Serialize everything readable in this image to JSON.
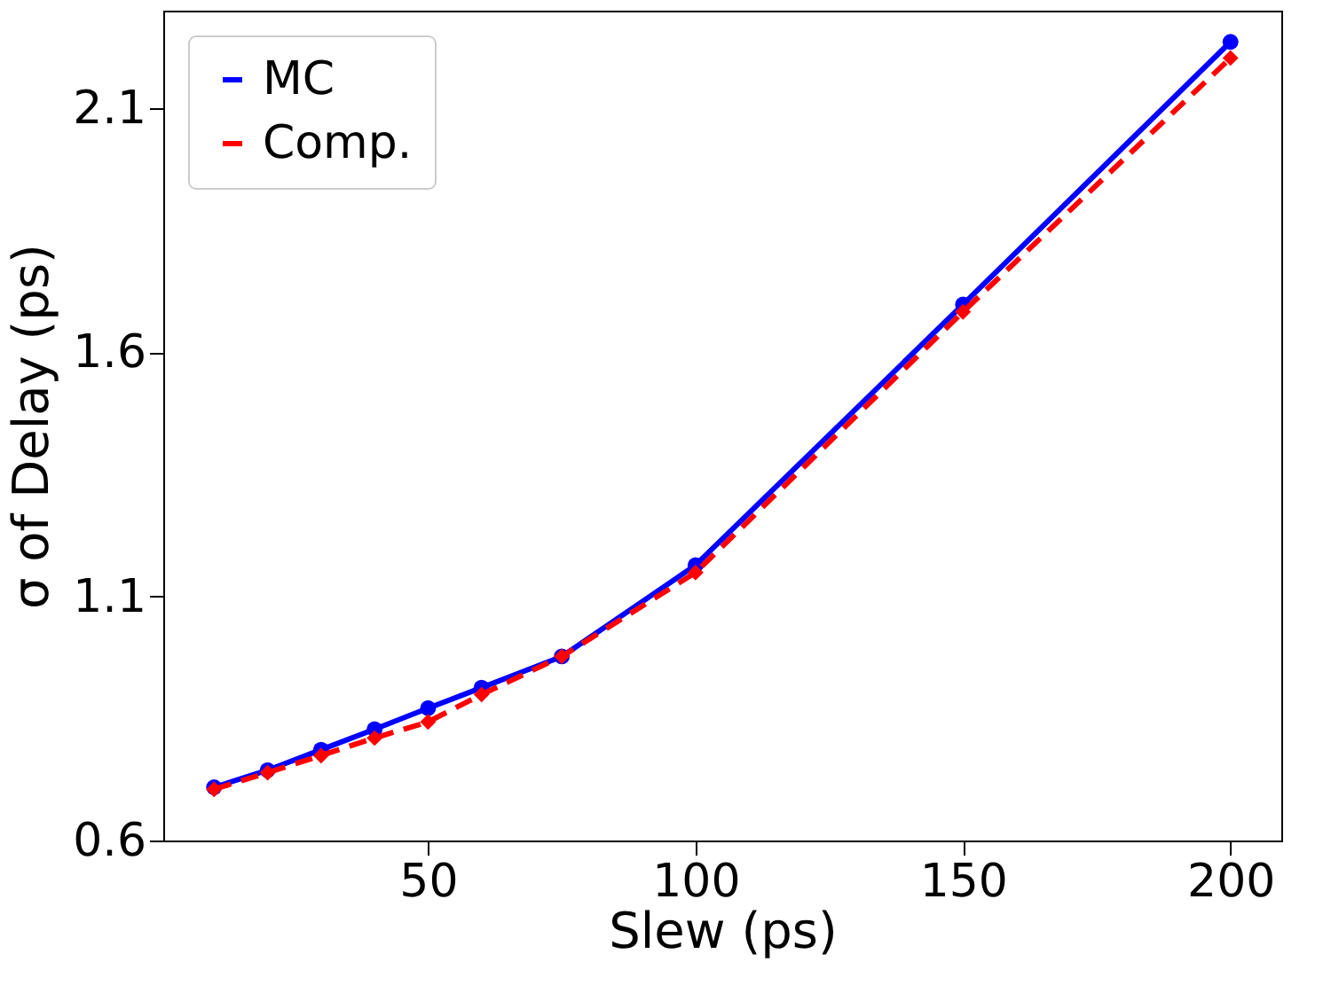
{
  "chart_data": {
    "type": "line",
    "xlabel": "Slew (ps)",
    "ylabel": "σ of Delay (ps)",
    "x": [
      10,
      20,
      30,
      40,
      50,
      60,
      75,
      100,
      150,
      200
    ],
    "xlim": [
      0.5,
      209.5
    ],
    "xticks": [
      50,
      100,
      150,
      200
    ],
    "ylim": [
      0.6,
      2.3
    ],
    "yticks": [
      0.6,
      1.1,
      1.6,
      2.1
    ],
    "grid": false,
    "legend": "top left",
    "series": [
      {
        "name": "MC",
        "color": "#0000ff",
        "marker": "circle",
        "line_style": "solid",
        "values": [
          0.709,
          0.744,
          0.786,
          0.828,
          0.871,
          0.913,
          0.977,
          1.164,
          1.698,
          2.236
        ]
      },
      {
        "name": "Comp.",
        "color": "#ff0000",
        "marker": "diamond",
        "line_style": "dashed",
        "values": [
          0.705,
          0.739,
          0.774,
          0.81,
          0.843,
          0.899,
          0.977,
          1.149,
          1.683,
          2.203
        ]
      }
    ]
  }
}
